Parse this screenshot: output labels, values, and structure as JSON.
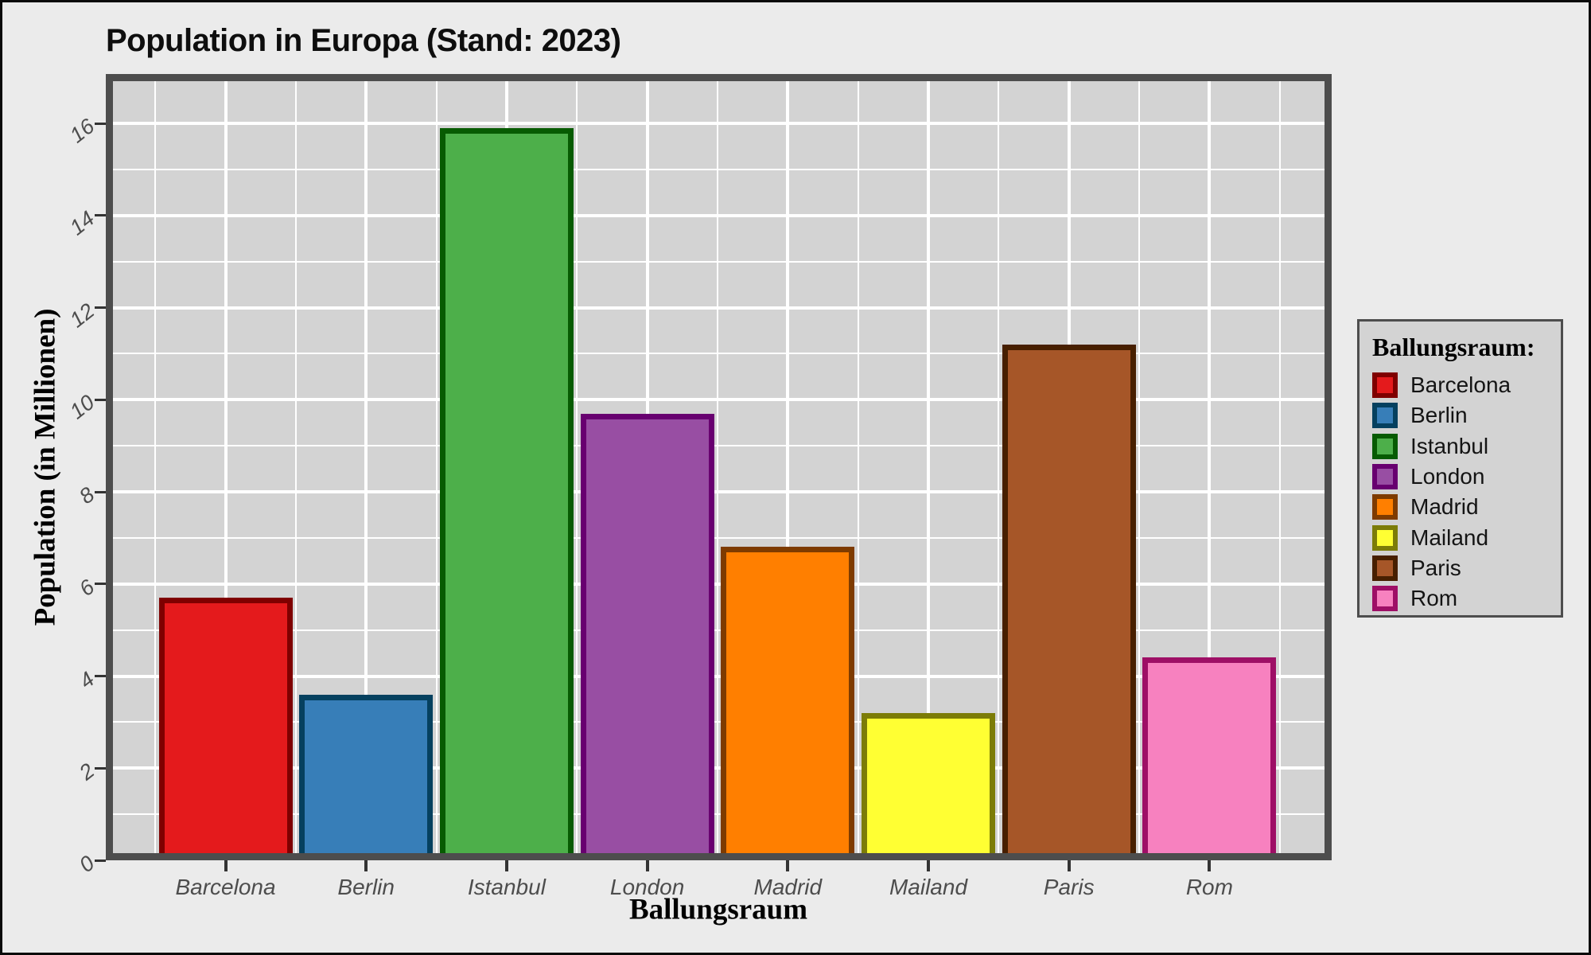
{
  "chart_data": {
    "type": "bar",
    "title": "Population in Europa (Stand: 2023)",
    "xlabel": "Ballungsraum",
    "ylabel": "Population (in Millionen)",
    "categories": [
      "Barcelona",
      "Berlin",
      "Istanbul",
      "London",
      "Madrid",
      "Mailand",
      "Paris",
      "Rom"
    ],
    "values": [
      5.7,
      3.6,
      15.9,
      9.7,
      6.8,
      3.2,
      11.2,
      4.4
    ],
    "bar_fill_colors": [
      "#E41A1C",
      "#377EB8",
      "#4DAF4A",
      "#984EA3",
      "#FF7F00",
      "#FFFF33",
      "#A65628",
      "#F781BF"
    ],
    "bar_border_colors": [
      "#7F0000",
      "#05405F",
      "#075B02",
      "#680070",
      "#7E3B00",
      "#7C7C07",
      "#471F00",
      "#9E0F66"
    ],
    "ylim": [
      0,
      16.9
    ],
    "yticks": [
      0,
      2,
      4,
      6,
      8,
      10,
      12,
      14,
      16
    ],
    "grid": "white major and minor gridlines on gray panel",
    "legend_position": "right"
  },
  "legend": {
    "title": "Ballungsraum:",
    "labels": [
      "Barcelona",
      "Berlin",
      "Istanbul",
      "London",
      "Madrid",
      "Mailand",
      "Paris",
      "Rom"
    ]
  },
  "colors": {
    "figure_background": "#EBEBEB",
    "panel_background": "#D3D3D3",
    "gridline": "#FFFFFF",
    "panel_border": "#4D4D4D",
    "tick_mark": "#333333",
    "tick_label_text": "#4D4D4D",
    "title_text": "#0E0E0E",
    "axis_title_text": "#000000",
    "figure_frame": "#0A0A0A"
  }
}
